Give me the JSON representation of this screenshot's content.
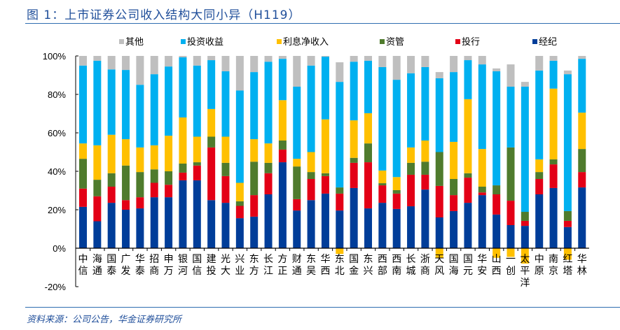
{
  "title": "图 1：上市证券公司收入结构大同小异（H119）",
  "footer": "资料来源：公司公告，华金证券研究所",
  "chart_data": {
    "type": "bar",
    "stacked": true,
    "title": "",
    "xlabel": "",
    "ylabel": "",
    "ylim": [
      -20,
      100
    ],
    "yticks": [
      "-20%",
      "0%",
      "20%",
      "40%",
      "60%",
      "80%",
      "100%"
    ],
    "ytick_values": [
      -20,
      0,
      20,
      40,
      60,
      80,
      100
    ],
    "grid": false,
    "legend_position": "top",
    "legend_order": [
      "其他",
      "投资收益",
      "利息净收入",
      "资管",
      "投行",
      "经纪"
    ],
    "categories": [
      "中信",
      "海通",
      "国泰",
      "广发",
      "华泰",
      "招商",
      "申万",
      "银河",
      "国信",
      "建投",
      "光大",
      "兴业",
      "东方",
      "长江",
      "方正",
      "财通",
      "东吴",
      "华西",
      "东北",
      "国金",
      "东兴",
      "西部",
      "西南",
      "长城",
      "浙商",
      "天风",
      "国海",
      "国元",
      "华安",
      "山西",
      "一创",
      "太平洋",
      "中原",
      "南京",
      "红塔",
      "华林"
    ],
    "series": [
      {
        "name": "经纪",
        "color": "#003d99",
        "values": [
          21.5,
          14,
          23.6,
          20,
          20.7,
          26.5,
          26.5,
          35.3,
          35.3,
          25,
          23.6,
          15.6,
          16.4,
          28,
          44.7,
          19.6,
          25,
          28.4,
          19.6,
          31.3,
          20.7,
          23.6,
          20.4,
          21.8,
          30.5,
          16,
          19.3,
          23.6,
          27.6,
          17.5,
          12,
          11.6,
          28,
          31.3,
          11,
          31.6
        ]
      },
      {
        "name": "投行",
        "color": "#e30016",
        "values": [
          9.5,
          13,
          8.4,
          5,
          5.8,
          7.5,
          6.5,
          4,
          7.7,
          27.4,
          13.9,
          6.4,
          11.2,
          11,
          6.6,
          5.9,
          11,
          9.1,
          8.8,
          13.1,
          24,
          9.1,
          8,
          16.4,
          7.7,
          16.4,
          8.3,
          13.1,
          1.4,
          10.5,
          12.7,
          2.6,
          8,
          12.3,
          3.2,
          8
        ]
      },
      {
        "name": "资管",
        "color": "#4f7b2d",
        "values": [
          15.5,
          8.6,
          7,
          18,
          13.1,
          7,
          7,
          4.7,
          1.7,
          5.6,
          6.9,
          2.4,
          17.4,
          5.4,
          4.7,
          17,
          3.6,
          1.5,
          3.2,
          2.6,
          9.8,
          1.1,
          1.8,
          6.2,
          6.8,
          17.6,
          8.4,
          2.3,
          3,
          4.7,
          27.7,
          4.7,
          3.6,
          2.6,
          5.1,
          12
        ]
      },
      {
        "name": "利息净收入",
        "color": "#ffc000",
        "values": [
          8,
          17.9,
          20,
          13.7,
          12.8,
          12.5,
          18.5,
          24,
          13.3,
          14.4,
          13.6,
          9.6,
          11.7,
          10.1,
          21,
          4,
          10.4,
          28,
          -3,
          19.5,
          15.7,
          6.6,
          6.8,
          8,
          11,
          -5,
          19.3,
          38.5,
          19.6,
          -5,
          -4.5,
          -8,
          6.6,
          36.8,
          -6,
          18.9
        ]
      },
      {
        "name": "投资收益",
        "color": "#00b0f0",
        "values": [
          40.5,
          44,
          34,
          36,
          32.6,
          37,
          36,
          31.3,
          37,
          25.4,
          34,
          48,
          34.9,
          42.5,
          21.5,
          37.5,
          45,
          32.6,
          54.9,
          30.5,
          27.3,
          53.8,
          50.6,
          38.6,
          38.2,
          38.4,
          36.3,
          20.3,
          44,
          59.3,
          31.6,
          65.1,
          46.2,
          14.5,
          71.2,
          28
        ]
      },
      {
        "name": "其他",
        "color": "#bfbfbf",
        "values": [
          5,
          2.5,
          7,
          7.3,
          15,
          9.5,
          5.5,
          0.7,
          5,
          2.2,
          8,
          18,
          8.4,
          3,
          1.5,
          16,
          5,
          0.4,
          10.2,
          3,
          2.5,
          5.8,
          12.4,
          9,
          5.8,
          3.2,
          8.4,
          2.2,
          4.4,
          1.5,
          11.6,
          2.5,
          7.6,
          2.5,
          1.9,
          1.5
        ]
      }
    ]
  }
}
